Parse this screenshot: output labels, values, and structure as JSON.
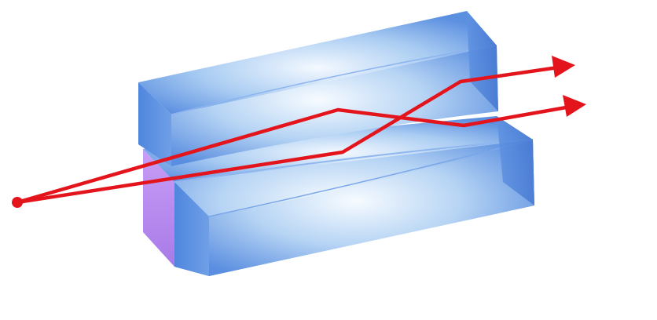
{
  "diagram": {
    "colors": {
      "background": "#ffffff",
      "ray": "#e3141b",
      "glass_light": "#f4f9ff",
      "glass_mid": "#a9ccf2",
      "glass_dark": "#5b8fe0",
      "glass_edge": "#4b7fd6",
      "inner_gap_violet": "#b78cf2"
    },
    "components": [
      {
        "name": "light-source-point",
        "kind": "point source"
      },
      {
        "name": "upper-glass-slab",
        "kind": "transparent block"
      },
      {
        "name": "lower-glass-slab",
        "kind": "transparent block"
      },
      {
        "name": "ray-upper-path",
        "kind": "ray with arrowhead"
      },
      {
        "name": "ray-lower-path",
        "kind": "ray with arrowhead"
      }
    ]
  }
}
